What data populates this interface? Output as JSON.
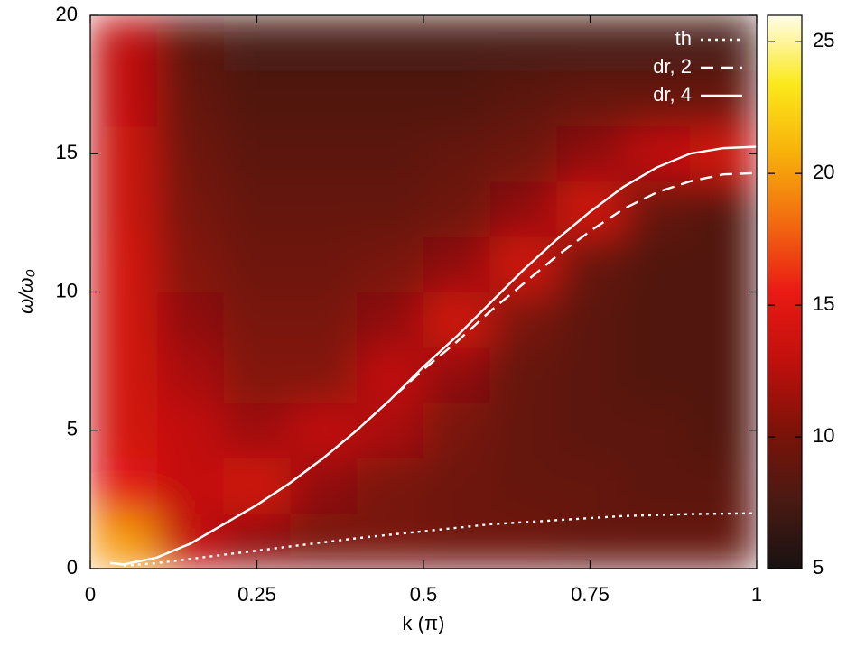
{
  "chart_data": {
    "type": "heatmap",
    "xlabel": "k (π)",
    "ylabel": "ω/ω₀",
    "xlim": [
      0,
      1
    ],
    "xticks": [
      0,
      0.25,
      0.5,
      0.75,
      1
    ],
    "ylim": [
      0,
      20
    ],
    "yticks": [
      0,
      5,
      10,
      15,
      20
    ],
    "clim": [
      5,
      26
    ],
    "cticks": [
      5,
      10,
      15,
      20,
      25
    ],
    "colormap": [
      "#181212",
      "#4a1a12",
      "#7d1208",
      "#c0100c",
      "#ea1a14",
      "#f26a10",
      "#f7b00a",
      "#fbe81a",
      "#fffde8"
    ],
    "heat_x": [
      0.05,
      0.15,
      0.25,
      0.35,
      0.45,
      0.55,
      0.65,
      0.75,
      0.85,
      0.95
    ],
    "heat_y": [
      1,
      3,
      5,
      7,
      9,
      11,
      13,
      15,
      17,
      19
    ],
    "z": [
      [
        20,
        13,
        11,
        10,
        10,
        9.5,
        9.5,
        9,
        9,
        9
      ],
      [
        15,
        13,
        14,
        11,
        10,
        9.5,
        9,
        9,
        8.5,
        8.5
      ],
      [
        14,
        13,
        11.5,
        13,
        12,
        10,
        9,
        8.5,
        8.5,
        8
      ],
      [
        14,
        12,
        10.5,
        10.5,
        13,
        11,
        9,
        8.5,
        8,
        8
      ],
      [
        14,
        11,
        10,
        10,
        11,
        14,
        10,
        8.5,
        8,
        8
      ],
      [
        14,
        10.5,
        9.5,
        9.5,
        10,
        11,
        14,
        9,
        8,
        8
      ],
      [
        13.5,
        10,
        9,
        9,
        9,
        9.5,
        11,
        14,
        9,
        8
      ],
      [
        13.5,
        9.5,
        8.5,
        8.5,
        8.5,
        9,
        9.5,
        11,
        13,
        14
      ],
      [
        13,
        9,
        8,
        8,
        8,
        8,
        8.5,
        9,
        9,
        9
      ],
      [
        13,
        8.5,
        7.5,
        7.5,
        7.5,
        7.5,
        7.5,
        7.5,
        7.5,
        7.5
      ]
    ],
    "series": [
      {
        "name": "th",
        "color": "#ffffff",
        "dash": "3,5",
        "x": [
          0.05,
          0.1,
          0.2,
          0.3,
          0.4,
          0.5,
          0.6,
          0.7,
          0.8,
          0.9,
          1
        ],
        "values": [
          0.1,
          0.2,
          0.5,
          0.8,
          1.1,
          1.35,
          1.6,
          1.75,
          1.9,
          1.97,
          2.0
        ]
      },
      {
        "name": "dr, 2",
        "color": "#ffffff",
        "dash": "14,8",
        "x": [
          0.03,
          0.05,
          0.1,
          0.15,
          0.2,
          0.25,
          0.3,
          0.35,
          0.4,
          0.45,
          0.5,
          0.55,
          0.6,
          0.65,
          0.7,
          0.75,
          0.8,
          0.85,
          0.9,
          0.95,
          1
        ],
        "values": [
          0.2,
          0.15,
          0.4,
          0.9,
          1.6,
          2.3,
          3.1,
          4.0,
          5.0,
          6.1,
          7.2,
          8.2,
          9.3,
          10.3,
          11.3,
          12.2,
          13.0,
          13.6,
          14.0,
          14.25,
          14.3
        ]
      },
      {
        "name": "dr, 4",
        "color": "#ffffff",
        "dash": "none",
        "x": [
          0.03,
          0.05,
          0.1,
          0.15,
          0.2,
          0.25,
          0.3,
          0.35,
          0.4,
          0.45,
          0.5,
          0.55,
          0.6,
          0.65,
          0.7,
          0.75,
          0.8,
          0.85,
          0.9,
          0.95,
          1
        ],
        "values": [
          0.2,
          0.15,
          0.4,
          0.9,
          1.6,
          2.3,
          3.1,
          4.0,
          5.0,
          6.1,
          7.3,
          8.4,
          9.6,
          10.8,
          11.9,
          12.9,
          13.8,
          14.5,
          15.0,
          15.2,
          15.25
        ]
      }
    ]
  }
}
